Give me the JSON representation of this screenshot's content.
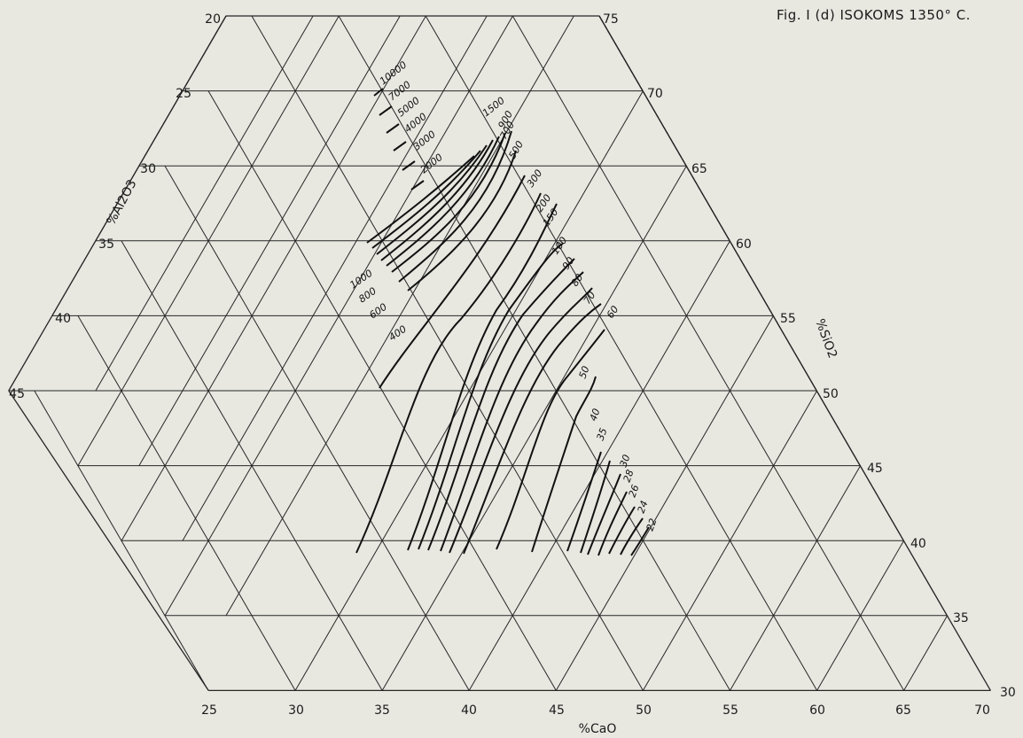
{
  "figure": {
    "title": "Fig. I (d) ISOKOMS 1350° C."
  },
  "axes": {
    "bottom": {
      "title": "%CaO",
      "ticks": [
        "25",
        "30",
        "35",
        "40",
        "45",
        "50",
        "55",
        "60",
        "65",
        "70"
      ]
    },
    "left": {
      "title": "%Al2O3",
      "ticks": [
        "20",
        "25",
        "30",
        "35",
        "40",
        "45"
      ]
    },
    "right": {
      "title": "%SiO2",
      "ticks": [
        "75",
        "70",
        "65",
        "60",
        "55",
        "50",
        "45",
        "40",
        "35",
        "30"
      ]
    }
  },
  "chart_data": {
    "type": "ternary-isoline",
    "grid": true,
    "components": [
      "CaO",
      "Al2O3",
      "SiO2"
    ],
    "ranges": {
      "CaO": [
        25,
        70
      ],
      "Al2O3": [
        0,
        45
      ],
      "SiO2": [
        30,
        75
      ]
    },
    "series_values": [
      "10000",
      "7000",
      "5000",
      "4000",
      "3000",
      "2000",
      "1500",
      "1000",
      "900",
      "800",
      "700",
      "600",
      "500",
      "400",
      "300",
      "200",
      "150",
      "100",
      "90",
      "80",
      "70",
      "60",
      "50",
      "40",
      "35",
      "30",
      "28",
      "26",
      "24",
      "22"
    ]
  }
}
